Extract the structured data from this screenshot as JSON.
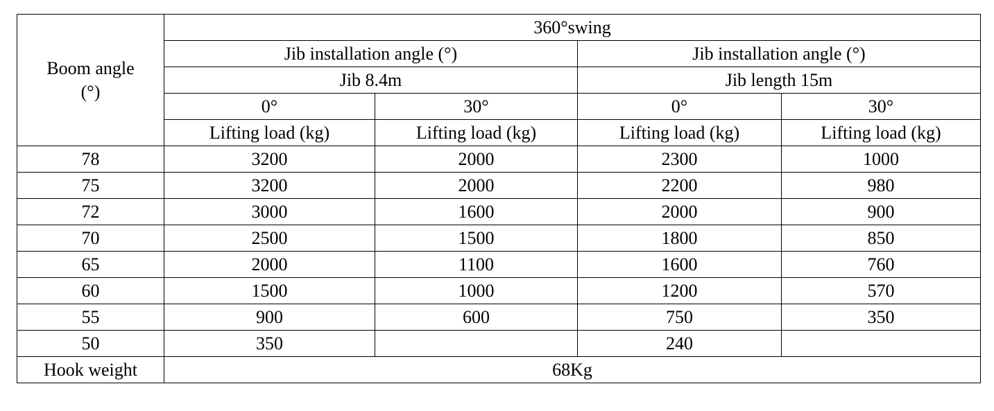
{
  "header": {
    "boom_angle_line1": "Boom angle",
    "boom_angle_line2": "(°)",
    "swing": "360°swing",
    "groups": [
      {
        "installation_label": "Jib installation angle (°)",
        "length_label": "Jib 8.4m",
        "angles": [
          "0°",
          "30°"
        ]
      },
      {
        "installation_label": "Jib installation angle (°)",
        "length_label": "Jib length 15m",
        "angles": [
          "0°",
          "30°"
        ]
      }
    ],
    "lifting_load_label": "Lifting load (kg)"
  },
  "rows": [
    {
      "angle": "78",
      "values": [
        "3200",
        "2000",
        "2300",
        "1000"
      ]
    },
    {
      "angle": "75",
      "values": [
        "3200",
        "2000",
        "2200",
        "980"
      ]
    },
    {
      "angle": "72",
      "values": [
        "3000",
        "1600",
        "2000",
        "900"
      ]
    },
    {
      "angle": "70",
      "values": [
        "2500",
        "1500",
        "1800",
        "850"
      ]
    },
    {
      "angle": "65",
      "values": [
        "2000",
        "1100",
        "1600",
        "760"
      ]
    },
    {
      "angle": "60",
      "values": [
        "1500",
        "1000",
        "1200",
        "570"
      ]
    },
    {
      "angle": "55",
      "values": [
        "900",
        "600",
        "750",
        "350"
      ]
    },
    {
      "angle": "50",
      "values": [
        "350",
        "",
        "240",
        ""
      ]
    }
  ],
  "footer": {
    "label": "Hook weight",
    "value": "68Kg"
  }
}
